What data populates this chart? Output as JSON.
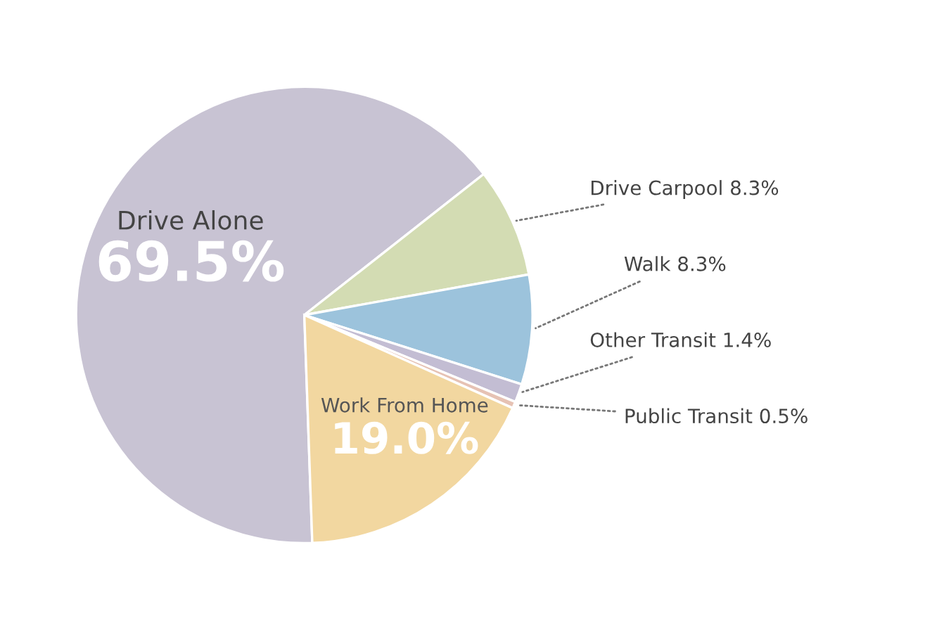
{
  "chart_data": {
    "type": "pie",
    "categories": [
      "Drive Alone",
      "Drive Carpool",
      "Walk",
      "Other Transit",
      "Public Transit",
      "Work From Home"
    ],
    "values": [
      69.5,
      8.3,
      8.3,
      1.4,
      0.5,
      19.0
    ],
    "value_labels": [
      "69.5%",
      "8.3%",
      "8.3%",
      "1.4%",
      "0.5%",
      "19.0%"
    ],
    "colors": [
      "#c8c3d3",
      "#d3dcb3",
      "#9cc3dc",
      "#c3bdd3",
      "#e6c2b4",
      "#f2d7a0"
    ],
    "legend": false
  }
}
